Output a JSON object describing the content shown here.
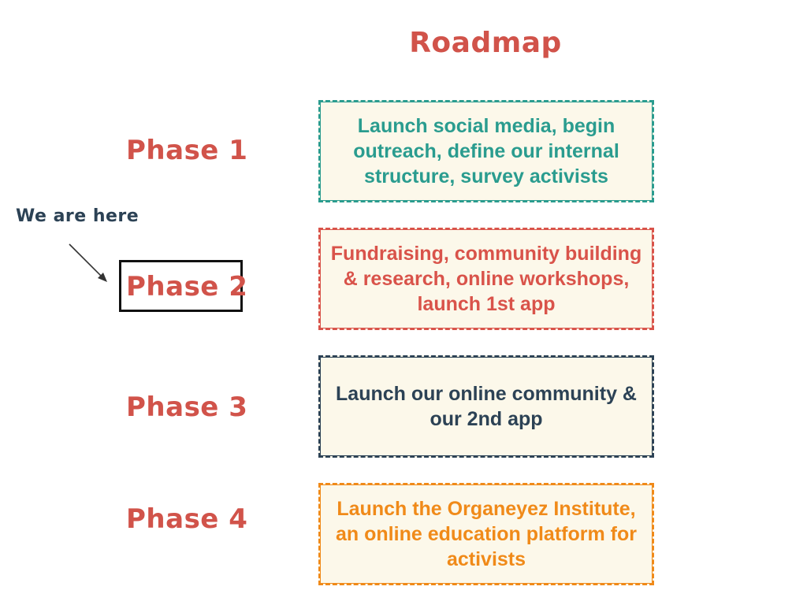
{
  "title": "Roadmap",
  "marker": {
    "label": "We are here",
    "current_phase_index": 1
  },
  "phases": [
    {
      "label": "Phase 1",
      "description": "Launch social media, begin outreach, define our internal structure, survey activists",
      "color": "#2a9c8f"
    },
    {
      "label": "Phase 2",
      "description": "Fundraising, community building & research, online workshops, launch 1st app",
      "color": "#d9534a"
    },
    {
      "label": "Phase 3",
      "description": "Launch our online community & our 2nd app",
      "color": "#2c4255"
    },
    {
      "label": "Phase 4",
      "description": "Launch the Organeyez Institute, an online education platform for activists",
      "color": "#f08a19"
    }
  ],
  "colors": {
    "title": "#d1534a",
    "phase_label": "#d1534a",
    "marker_text": "#2c4255",
    "box_background": "#fcf8ea"
  }
}
